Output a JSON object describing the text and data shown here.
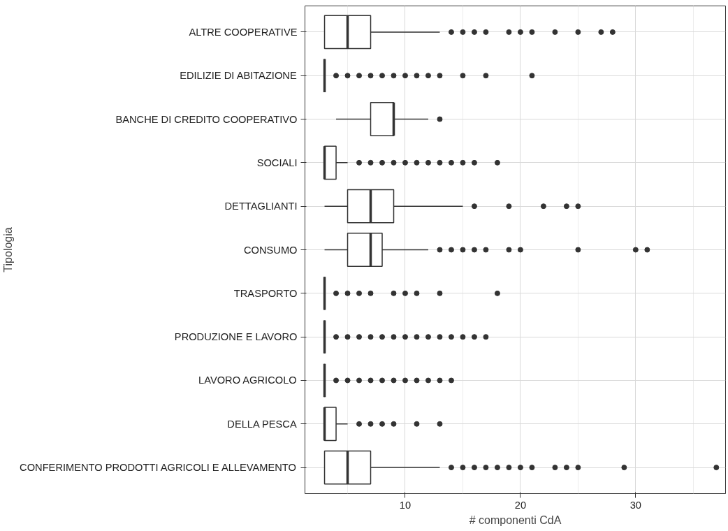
{
  "chart_data": {
    "type": "box",
    "orientation": "horizontal",
    "xlabel": "# componenti CdA",
    "ylabel": "Tipologia",
    "color": "#333333",
    "grid": true,
    "categories": [
      "ALTRE COOPERATIVE",
      "EDILIZIE DI ABITAZIONE",
      "BANCHE DI CREDITO COOPERATIVO",
      "SOCIALI",
      "DETTAGLIANTI",
      "CONSUMO",
      "TRASPORTO",
      "PRODUZIONE E LAVORO",
      "LAVORO AGRICOLO",
      "DELLA PESCA",
      "CONFERIMENTO PRODOTTI AGRICOLI E ALLEVAMENTO"
    ],
    "xlim": [
      1.3,
      37.8
    ],
    "xticks": [
      10,
      20,
      30
    ],
    "boxes": [
      {
        "low": 3,
        "q1": 3,
        "median": 5,
        "q3": 7,
        "high": 13,
        "outliers": [
          14,
          15,
          16,
          17,
          19,
          20,
          21,
          23,
          25,
          27,
          28
        ]
      },
      {
        "low": 3,
        "q1": 3,
        "median": 3,
        "q3": 3,
        "high": 3,
        "outliers": [
          4,
          5,
          6,
          7,
          8,
          9,
          10,
          11,
          12,
          13,
          15,
          17,
          21
        ]
      },
      {
        "low": 4,
        "q1": 7,
        "median": 9,
        "q3": 9,
        "high": 12,
        "outliers": [
          13
        ]
      },
      {
        "low": 3,
        "q1": 3,
        "median": 3,
        "q3": 4,
        "high": 5,
        "outliers": [
          6,
          7,
          8,
          9,
          10,
          11,
          12,
          13,
          14,
          15,
          16,
          18
        ]
      },
      {
        "low": 3,
        "q1": 5,
        "median": 7,
        "q3": 9,
        "high": 15,
        "outliers": [
          16,
          19,
          22,
          24,
          25
        ]
      },
      {
        "low": 3,
        "q1": 5,
        "median": 7,
        "q3": 8,
        "high": 12,
        "outliers": [
          13,
          14,
          15,
          16,
          17,
          19,
          20,
          25,
          30,
          31
        ]
      },
      {
        "low": 3,
        "q1": 3,
        "median": 3,
        "q3": 3,
        "high": 3,
        "outliers": [
          4,
          5,
          6,
          7,
          9,
          10,
          11,
          13,
          18
        ]
      },
      {
        "low": 3,
        "q1": 3,
        "median": 3,
        "q3": 3,
        "high": 3,
        "outliers": [
          4,
          5,
          6,
          7,
          8,
          9,
          10,
          11,
          12,
          13,
          14,
          15,
          16,
          17
        ]
      },
      {
        "low": 3,
        "q1": 3,
        "median": 3,
        "q3": 3,
        "high": 3,
        "outliers": [
          4,
          5,
          6,
          7,
          8,
          9,
          10,
          11,
          12,
          13,
          14
        ]
      },
      {
        "low": 3,
        "q1": 3,
        "median": 3,
        "q3": 4,
        "high": 5,
        "outliers": [
          6,
          7,
          8,
          9,
          11,
          13
        ]
      },
      {
        "low": 3,
        "q1": 3,
        "median": 5,
        "q3": 7,
        "high": 13,
        "outliers": [
          14,
          15,
          16,
          17,
          18,
          19,
          20,
          21,
          23,
          24,
          25,
          29,
          37
        ]
      }
    ]
  }
}
